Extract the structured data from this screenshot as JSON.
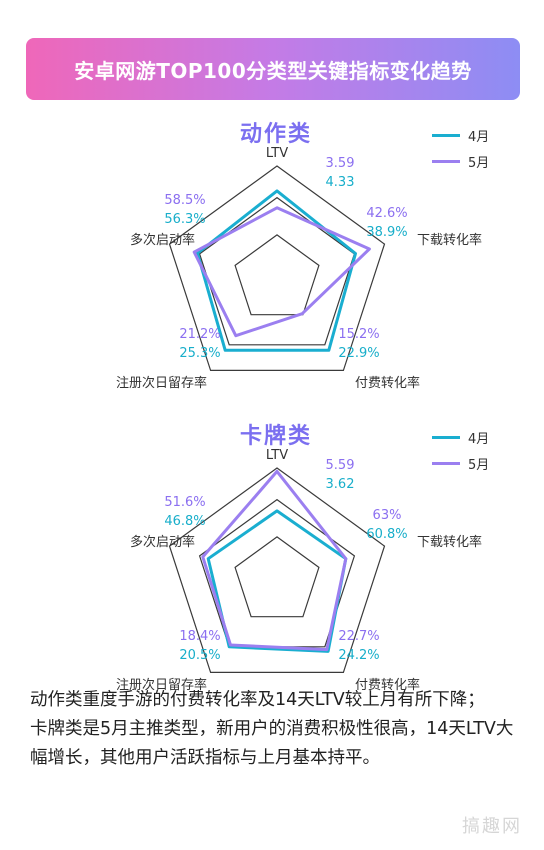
{
  "banner": {
    "title": "安卓网游TOP100分类型关键指标变化趋势"
  },
  "legend": {
    "april": "4月",
    "may": "5月"
  },
  "colors": {
    "april": "#1aaed0",
    "may": "#9b7ff0",
    "grid": "#3a3a3a"
  },
  "chart_data": [
    {
      "type": "radar",
      "title": "动作类",
      "axes": [
        "LTV",
        "下载转化率",
        "付费转化率",
        "注册次日留存率",
        "多次启动率"
      ],
      "series": [
        {
          "name": "4月",
          "values": [
            "4.33",
            "38.9%",
            "22.9%",
            "25.3%",
            "56.3%"
          ],
          "levels": [
            0.78,
            0.73,
            0.78,
            0.78,
            0.74
          ]
        },
        {
          "name": "5月",
          "values": [
            "3.59",
            "42.6%",
            "15.2%",
            "21.2%",
            "58.5%"
          ],
          "levels": [
            0.63,
            0.86,
            0.38,
            0.62,
            0.77
          ]
        }
      ]
    },
    {
      "type": "radar",
      "title": "卡牌类",
      "axes": [
        "LTV",
        "下载转化率",
        "付费转化率",
        "注册次日留存率",
        "多次启动率"
      ],
      "series": [
        {
          "name": "4月",
          "values": [
            "3.62",
            "60.8%",
            "24.2%",
            "20.5%",
            "46.8%"
          ],
          "levels": [
            0.62,
            0.64,
            0.77,
            0.72,
            0.64
          ]
        },
        {
          "name": "5月",
          "values": [
            "5.59",
            "63%",
            "22.7%",
            "18.4%",
            "51.6%"
          ],
          "levels": [
            0.97,
            0.64,
            0.75,
            0.7,
            0.69
          ]
        }
      ]
    }
  ],
  "summary": {
    "line1": "动作类重度手游的付费转化率及14天LTV较上月有所下降；",
    "line2": "卡牌类是5月主推类型，新用户的消费积极性很高，14天LTV大幅增长，其他用户活跃指标与上月基本持平。"
  },
  "watermark": "搞趣网"
}
